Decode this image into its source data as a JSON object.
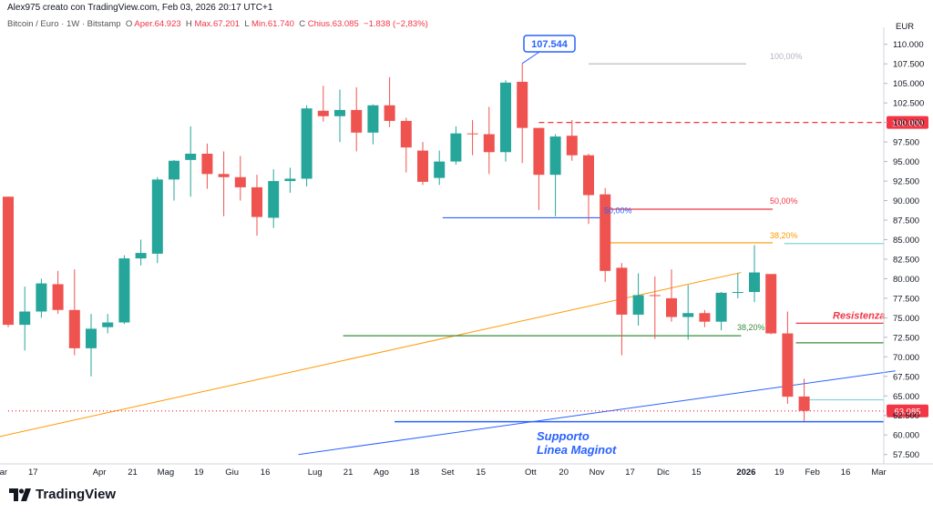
{
  "header": {
    "author_line": "Alex975 creato con TradingView.com, Feb 03, 2026 20:17 UTC+1",
    "symbol": "Bitcoin / Euro · 1W · Bitstamp",
    "open_label": "O",
    "open_value": "Aper.64.923",
    "high_label": "H",
    "high_value": "Max.67.201",
    "low_label": "L",
    "low_value": "Min.61.740",
    "close_label": "C",
    "close_value": "Chius.63.085",
    "change_value": "−1.838 (−2,83%)"
  },
  "logo_text": "TradingView",
  "colors": {
    "up": "#26a69a",
    "down": "#ef5350",
    "blue": "#2962ff",
    "orange": "#ff9800",
    "green": "#388e3c",
    "red": "#f23645",
    "lightblue": "#7fd3e0"
  },
  "chart_data": {
    "type": "candlestick",
    "currency": "EUR",
    "y_axis": {
      "min": 57500,
      "max": 110000,
      "step": 2500,
      "tick_labels": [
        "57.500",
        "60.000",
        "62.500",
        "65.000",
        "67.500",
        "70.000",
        "72.500",
        "75.000",
        "77.500",
        "80.000",
        "82.500",
        "85.000",
        "87.500",
        "90.000",
        "92.500",
        "95.000",
        "97.500",
        "100.000",
        "102.500",
        "105.000",
        "107.500",
        "110.000"
      ]
    },
    "x_ticks": [
      {
        "i": -0.5,
        "label": "Mar"
      },
      {
        "i": 1.5,
        "label": "17"
      },
      {
        "i": 5.5,
        "label": "Apr"
      },
      {
        "i": 7.5,
        "label": "21"
      },
      {
        "i": 9.5,
        "label": "Mag"
      },
      {
        "i": 11.5,
        "label": "19"
      },
      {
        "i": 13.5,
        "label": "Giu"
      },
      {
        "i": 15.5,
        "label": "16"
      },
      {
        "i": 18.5,
        "label": "Lug"
      },
      {
        "i": 20.5,
        "label": "21"
      },
      {
        "i": 22.5,
        "label": "Ago"
      },
      {
        "i": 24.5,
        "label": "18"
      },
      {
        "i": 26.5,
        "label": "Set"
      },
      {
        "i": 28.5,
        "label": "15"
      },
      {
        "i": 31.5,
        "label": "Ott"
      },
      {
        "i": 33.5,
        "label": "20"
      },
      {
        "i": 35.5,
        "label": "Nov"
      },
      {
        "i": 37.5,
        "label": "17"
      },
      {
        "i": 39.5,
        "label": "Dic"
      },
      {
        "i": 41.5,
        "label": "15"
      },
      {
        "i": 44.5,
        "label": "2026"
      },
      {
        "i": 46.5,
        "label": "19"
      },
      {
        "i": 48.5,
        "label": "Feb"
      },
      {
        "i": 50.5,
        "label": "16"
      },
      {
        "i": 52.5,
        "label": "Mar"
      }
    ],
    "candles": [
      {
        "o": 90500,
        "h": 90500,
        "l": 73800,
        "c": 74100
      },
      {
        "o": 74100,
        "h": 79000,
        "l": 70800,
        "c": 75800
      },
      {
        "o": 75800,
        "h": 80000,
        "l": 75000,
        "c": 79400
      },
      {
        "o": 79300,
        "h": 81000,
        "l": 75500,
        "c": 76000
      },
      {
        "o": 76000,
        "h": 81200,
        "l": 70200,
        "c": 71100
      },
      {
        "o": 71100,
        "h": 75500,
        "l": 67500,
        "c": 73600
      },
      {
        "o": 73800,
        "h": 75500,
        "l": 73000,
        "c": 74400
      },
      {
        "o": 74400,
        "h": 83000,
        "l": 74200,
        "c": 82600
      },
      {
        "o": 82600,
        "h": 85000,
        "l": 81700,
        "c": 83300
      },
      {
        "o": 83200,
        "h": 93000,
        "l": 82000,
        "c": 92700
      },
      {
        "o": 92700,
        "h": 95200,
        "l": 90000,
        "c": 95100
      },
      {
        "o": 95200,
        "h": 99500,
        "l": 90500,
        "c": 96000
      },
      {
        "o": 96000,
        "h": 97300,
        "l": 91500,
        "c": 93400
      },
      {
        "o": 93400,
        "h": 96300,
        "l": 88000,
        "c": 93000
      },
      {
        "o": 93000,
        "h": 95700,
        "l": 90000,
        "c": 91700
      },
      {
        "o": 91700,
        "h": 93300,
        "l": 85500,
        "c": 87900
      },
      {
        "o": 87800,
        "h": 94000,
        "l": 86500,
        "c": 92500
      },
      {
        "o": 92500,
        "h": 94200,
        "l": 91000,
        "c": 92800
      },
      {
        "o": 92800,
        "h": 102200,
        "l": 91800,
        "c": 101800
      },
      {
        "o": 101500,
        "h": 104700,
        "l": 100100,
        "c": 100800
      },
      {
        "o": 100800,
        "h": 104200,
        "l": 97500,
        "c": 101600
      },
      {
        "o": 101600,
        "h": 104500,
        "l": 96300,
        "c": 98700
      },
      {
        "o": 98700,
        "h": 102300,
        "l": 97200,
        "c": 102200
      },
      {
        "o": 102200,
        "h": 105800,
        "l": 99400,
        "c": 100200
      },
      {
        "o": 100200,
        "h": 100600,
        "l": 93600,
        "c": 96800
      },
      {
        "o": 96400,
        "h": 97500,
        "l": 92000,
        "c": 92400
      },
      {
        "o": 92900,
        "h": 96400,
        "l": 92000,
        "c": 95000
      },
      {
        "o": 95000,
        "h": 99500,
        "l": 94600,
        "c": 98600
      },
      {
        "o": 98600,
        "h": 100300,
        "l": 95800,
        "c": 98500
      },
      {
        "o": 98500,
        "h": 102000,
        "l": 93400,
        "c": 96200
      },
      {
        "o": 96200,
        "h": 105400,
        "l": 95000,
        "c": 105100
      },
      {
        "o": 105200,
        "h": 107544,
        "l": 94800,
        "c": 99300
      },
      {
        "o": 99300,
        "h": 99300,
        "l": 88800,
        "c": 93300
      },
      {
        "o": 93300,
        "h": 98500,
        "l": 88000,
        "c": 98200
      },
      {
        "o": 98300,
        "h": 100300,
        "l": 95100,
        "c": 95800
      },
      {
        "o": 95800,
        "h": 96000,
        "l": 87000,
        "c": 90700
      },
      {
        "o": 90800,
        "h": 91600,
        "l": 79600,
        "c": 81000
      },
      {
        "o": 81400,
        "h": 82000,
        "l": 70200,
        "c": 75400
      },
      {
        "o": 75400,
        "h": 80700,
        "l": 74000,
        "c": 77900
      },
      {
        "o": 77900,
        "h": 80300,
        "l": 72300,
        "c": 77800
      },
      {
        "o": 77500,
        "h": 81200,
        "l": 74500,
        "c": 75100
      },
      {
        "o": 75100,
        "h": 79200,
        "l": 72200,
        "c": 75600
      },
      {
        "o": 75600,
        "h": 76000,
        "l": 73800,
        "c": 74500
      },
      {
        "o": 74500,
        "h": 78300,
        "l": 73400,
        "c": 78200
      },
      {
        "o": 78300,
        "h": 80700,
        "l": 77500,
        "c": 78300
      },
      {
        "o": 78300,
        "h": 84300,
        "l": 77000,
        "c": 80800
      },
      {
        "o": 80600,
        "h": 80600,
        "l": 72900,
        "c": 73000
      },
      {
        "o": 73000,
        "h": 75800,
        "l": 64000,
        "c": 64900
      },
      {
        "o": 64923,
        "h": 67201,
        "l": 61740,
        "c": 63085
      }
    ],
    "horizontal_lines": [
      {
        "name": "resistance-dashed",
        "y": 100000,
        "color": "#f23645",
        "dashed": true,
        "x_from": 32
      },
      {
        "name": "fib-100",
        "y": 107500,
        "color": "#b2b5be",
        "x_from": 35,
        "x_to": 44.5
      },
      {
        "name": "fib-50",
        "y": 88900,
        "color": "#f23645",
        "x_from": 35.7,
        "x_to": 46.1
      },
      {
        "name": "fib-38",
        "y": 84600,
        "color": "#ff9800",
        "x_from": 35.7,
        "x_to": 46.1
      },
      {
        "name": "fib-38-ext",
        "y": 84500,
        "color": "#7fd3e0",
        "x_from": 46.8,
        "x_to": 53.5
      },
      {
        "name": "blue-50",
        "y": 87800,
        "color": "#2962ff",
        "x_from": 26.2,
        "x_to": 35.7
      },
      {
        "name": "green-mid",
        "y": 72700,
        "color": "#388e3c",
        "x_from": 20.2,
        "x_to": 44.2
      },
      {
        "name": "green-right",
        "y": 71800,
        "color": "#388e3c",
        "x_from": 47.5,
        "x_to": 53.5
      },
      {
        "name": "resistenza-line",
        "y": 74300,
        "color": "#f23645",
        "x_from": 47.5,
        "x_to": 53.5
      },
      {
        "name": "supporto-line",
        "y": 61700,
        "color": "#2962ff",
        "x_from": 23.3,
        "x_to": 53.5
      },
      {
        "name": "lightblue-low",
        "y": 64500,
        "color": "#7fd3e0",
        "x_from": 48.3,
        "x_to": 53.5
      },
      {
        "name": "close-line",
        "y": 63085,
        "color": "#f23645",
        "dotted": true,
        "x_from": 0,
        "x_to": 53.5
      }
    ],
    "trend_lines": [
      {
        "name": "orange-trendline",
        "color": "#ff9800",
        "x1": -0.5,
        "y1": 59800,
        "x2": 44.2,
        "y2": 80800
      },
      {
        "name": "blue-trendline",
        "color": "#2962ff",
        "x1": 17.5,
        "y1": 57500,
        "x2": 53.5,
        "y2": 68200
      }
    ],
    "annotations": {
      "peak_label": "107.544",
      "fib_100": "100,00%",
      "fib_50": "50,00%",
      "fib_38": "38,20%",
      "blue_50": "50,00%",
      "green_38": "38,20%",
      "resistenza": "Resistenza",
      "supporto_1": "Supporto",
      "supporto_2": "Linea Maginot",
      "price_100k": "100.000",
      "last_price": "63.085"
    }
  }
}
